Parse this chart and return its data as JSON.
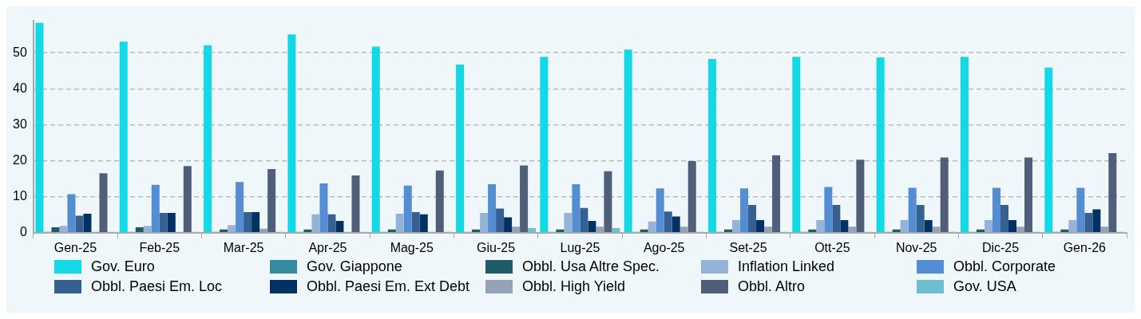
{
  "chart_data": {
    "type": "bar",
    "categories": [
      "Gen-25",
      "Feb-25",
      "Mar-25",
      "Apr-25",
      "Mag-25",
      "Giu-25",
      "Lug-25",
      "Ago-25",
      "Set-25",
      "Ott-25",
      "Nov-25",
      "Dic-25",
      "Gen-26"
    ],
    "series": [
      {
        "name": "Gov. Euro",
        "color": "#13d8e6",
        "values": [
          58.3,
          53.1,
          52.1,
          55.1,
          51.7,
          46.7,
          48.9,
          50.9,
          48.3,
          48.9,
          48.7,
          48.9,
          45.9
        ]
      },
      {
        "name": "Gov. Giappone",
        "color": "#368a9e",
        "values": [
          0,
          0,
          0,
          0,
          0,
          0,
          0,
          0,
          0,
          0,
          0,
          0,
          0
        ]
      },
      {
        "name": "Obbl. Usa Altre Spec.",
        "color": "#215a69",
        "values": [
          1.5,
          1.5,
          0.9,
          0.9,
          0.9,
          0.9,
          0.9,
          0.9,
          0.9,
          0.9,
          0.9,
          0.9,
          0.9
        ]
      },
      {
        "name": "Inflation Linked",
        "color": "#95b3d7",
        "values": [
          1.9,
          1.9,
          2.1,
          5.1,
          5.3,
          5.5,
          5.5,
          3.1,
          3.5,
          3.5,
          3.5,
          3.5,
          3.5
        ]
      },
      {
        "name": "Obbl. Corporate",
        "color": "#548dd4",
        "values": [
          10.7,
          13.3,
          14.1,
          13.7,
          13.1,
          13.5,
          13.5,
          12.3,
          12.3,
          12.7,
          12.5,
          12.5,
          12.5
        ]
      },
      {
        "name": "Obbl. Paesi Em. Loc",
        "color": "#366092",
        "values": [
          4.7,
          5.5,
          5.7,
          5.1,
          5.7,
          6.7,
          6.9,
          5.9,
          7.7,
          7.7,
          7.7,
          7.7,
          5.5
        ]
      },
      {
        "name": "Obbl. Paesi Em. Ext Debt",
        "color": "#023263",
        "values": [
          5.3,
          5.5,
          5.7,
          3.3,
          5.1,
          4.3,
          3.3,
          4.5,
          3.5,
          3.5,
          3.5,
          3.5,
          6.5
        ]
      },
      {
        "name": "Obbl. High Yield",
        "color": "#94a3b8",
        "values": [
          0,
          0,
          1.1,
          0,
          0,
          1.7,
          1.7,
          1.7,
          1.7,
          1.7,
          1.7,
          1.7,
          1.7
        ]
      },
      {
        "name": "Obbl. Altro",
        "color": "#4f5f7a",
        "values": [
          16.5,
          18.5,
          17.7,
          15.9,
          17.3,
          18.7,
          17.1,
          19.9,
          21.5,
          20.3,
          20.9,
          20.9,
          22.1
        ]
      },
      {
        "name": "Gov. USA",
        "color": "#6fbfd1",
        "values": [
          0,
          0,
          0,
          0,
          0,
          1.3,
          1.3,
          0,
          0,
          0,
          0,
          0,
          0
        ]
      }
    ],
    "ylim": [
      0,
      59
    ],
    "yticks": [
      0,
      10,
      20,
      30,
      40,
      50
    ],
    "grid": "y",
    "legend": "bottom"
  }
}
